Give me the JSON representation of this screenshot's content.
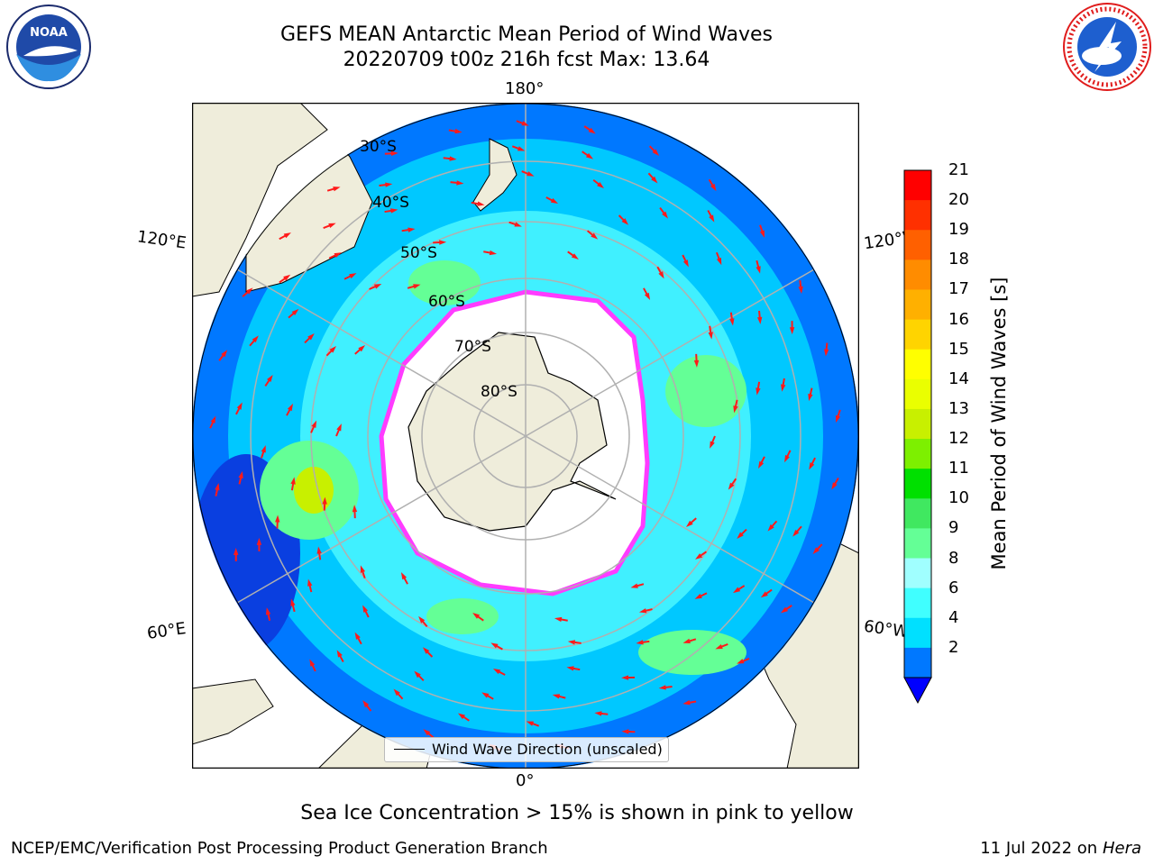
{
  "header": {
    "title_line1": "GEFS MEAN Antarctic Mean Period of Wind Waves",
    "title_line2": "20220709 t00z 216h fcst   Max: 13.64"
  },
  "logos": {
    "left": "noaa-logo",
    "right": "national-weather-service-logo"
  },
  "map": {
    "projection": "south-polar-stereographic",
    "longitude_labels": {
      "top": "180°",
      "bottom": "0°",
      "left_upper": "120°E",
      "left_lower": "60°E",
      "right_upper": "120°W",
      "right_lower": "60°W"
    },
    "latitude_labels": [
      "30°S",
      "40°S",
      "50°S",
      "60°S",
      "70°S",
      "80°S"
    ],
    "colors": {
      "ocean_low": "#0a3fe0",
      "ocean_mid": "#00c8ff",
      "ocean_light": "#80f0ff",
      "land": "#efeddb",
      "ice": "#ffffff",
      "ice_edge": "#ff3cff",
      "arrow": "#ff1a1a"
    },
    "legend": {
      "label": "Wind Wave Direction (unscaled)"
    }
  },
  "colorbar": {
    "label": "Mean Period of Wind Waves [s]",
    "ticks": [
      "21",
      "20",
      "19",
      "18",
      "17",
      "16",
      "15",
      "14",
      "13",
      "12",
      "11",
      "10",
      "9",
      "8",
      "6",
      "4",
      "2"
    ],
    "colors": [
      "#ff0000",
      "#ff3000",
      "#ff6000",
      "#ff8c00",
      "#ffb000",
      "#ffd400",
      "#ffff00",
      "#eaff00",
      "#c8f000",
      "#7df000",
      "#00e000",
      "#40e860",
      "#64ff96",
      "#a0ffff",
      "#40ffff",
      "#00e0ff",
      "#0078ff"
    ],
    "under_color": "#0000ff"
  },
  "notes": {
    "sea_ice": "Sea Ice Concentration > 15% is shown in pink to yellow"
  },
  "footer": {
    "left": "NCEP/EMC/Verification Post Processing Product Generation Branch",
    "right_date": "11 Jul 2022 on ",
    "right_host": "Hera"
  }
}
